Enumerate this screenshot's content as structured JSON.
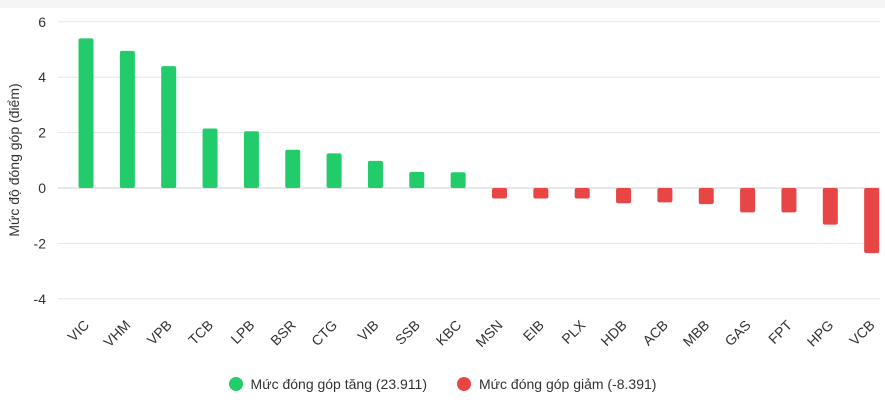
{
  "chart_data": {
    "type": "bar",
    "categories": [
      "VIC",
      "VHM",
      "VPB",
      "TCB",
      "LPB",
      "BSR",
      "CTG",
      "VIB",
      "SSB",
      "KBC",
      "MSN",
      "EIB",
      "PLX",
      "HDB",
      "ACB",
      "MBB",
      "GAS",
      "FPT",
      "HPG",
      "VCB"
    ],
    "values": [
      5.4,
      4.95,
      4.4,
      2.15,
      2.05,
      1.38,
      1.25,
      0.98,
      0.58,
      0.57,
      -0.38,
      -0.38,
      -0.38,
      -0.55,
      -0.52,
      -0.58,
      -0.88,
      -0.88,
      -1.32,
      -2.35
    ],
    "ylabel": "Mức độ đóng góp (điểm)",
    "ylim": [
      -5,
      6
    ],
    "yticks": [
      6,
      4,
      2,
      0,
      -2,
      -4
    ],
    "grid": true,
    "legend_position": "bottom",
    "series": [
      {
        "name": "Mức đóng góp tăng (23.911)",
        "color": "#22cc6a"
      },
      {
        "name": "Mức đóng góp giảm (-8.391)",
        "color": "#e84545"
      }
    ]
  }
}
